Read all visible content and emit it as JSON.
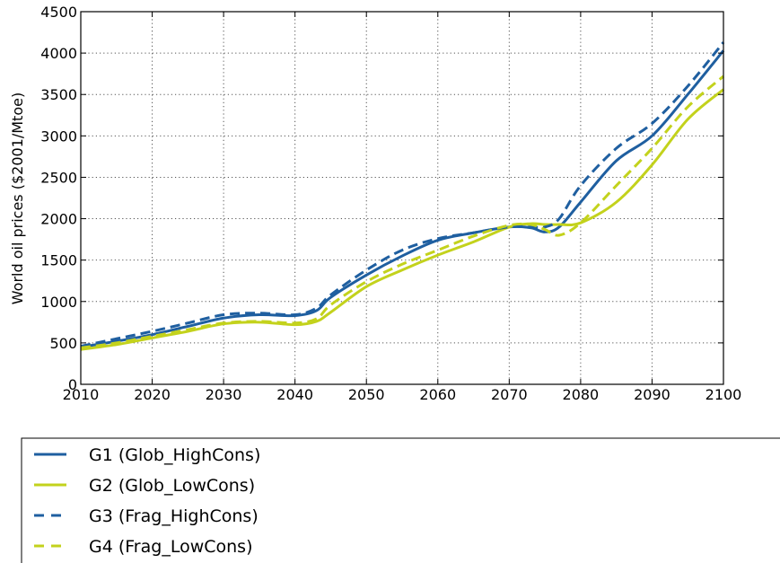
{
  "chart_data": {
    "type": "line",
    "title": "",
    "xlabel": "",
    "ylabel": "World oil prices ($2001/Mtoe)",
    "xlim": [
      2010,
      2100
    ],
    "ylim": [
      0,
      4500
    ],
    "xticks": [
      2010,
      2020,
      2030,
      2040,
      2050,
      2060,
      2070,
      2080,
      2090,
      2100
    ],
    "yticks": [
      0,
      500,
      1000,
      1500,
      2000,
      2500,
      3000,
      3500,
      4000,
      4500
    ],
    "grid": true,
    "legend_position": "below",
    "x": [
      2010,
      2015,
      2020,
      2025,
      2030,
      2035,
      2040,
      2043,
      2045,
      2050,
      2055,
      2060,
      2065,
      2070,
      2073,
      2075,
      2077,
      2080,
      2085,
      2090,
      2095,
      2100
    ],
    "series": [
      {
        "name": "G1 (Glob_HighCons)",
        "color": "#1f5fa0",
        "style": "solid",
        "values": [
          450,
          520,
          600,
          700,
          800,
          840,
          830,
          890,
          1050,
          1320,
          1550,
          1740,
          1830,
          1900,
          1890,
          1840,
          1900,
          2200,
          2700,
          3000,
          3500,
          4030
        ]
      },
      {
        "name": "G2 (Glob_LowCons)",
        "color": "#c3d21c",
        "style": "solid",
        "values": [
          420,
          480,
          560,
          640,
          730,
          750,
          720,
          760,
          870,
          1180,
          1380,
          1560,
          1720,
          1900,
          1940,
          1930,
          1930,
          1950,
          2200,
          2650,
          3200,
          3560
        ]
      },
      {
        "name": "G3 (Frag_HighCons)",
        "color": "#1f5fa0",
        "style": "dashed",
        "values": [
          460,
          550,
          640,
          740,
          840,
          860,
          840,
          920,
          1080,
          1380,
          1620,
          1760,
          1830,
          1900,
          1900,
          1900,
          2000,
          2400,
          2850,
          3150,
          3600,
          4130
        ]
      },
      {
        "name": "G4 (Frag_LowCons)",
        "color": "#c3d21c",
        "style": "dashed",
        "values": [
          440,
          500,
          580,
          660,
          740,
          760,
          740,
          790,
          960,
          1240,
          1450,
          1620,
          1790,
          1920,
          1930,
          1870,
          1800,
          1950,
          2400,
          2850,
          3350,
          3720
        ]
      }
    ]
  }
}
